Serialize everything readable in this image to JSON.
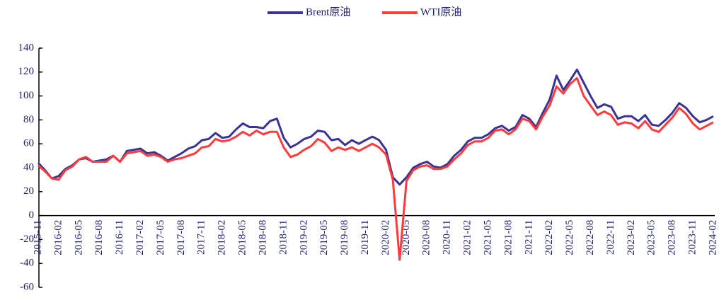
{
  "chart_data": {
    "type": "line",
    "categories": [
      "2015-11",
      null,
      null,
      "2016-02",
      null,
      null,
      "2016-05",
      null,
      null,
      "2016-08",
      null,
      null,
      "2016-11",
      null,
      null,
      "2017-02",
      null,
      null,
      "2017-05",
      null,
      null,
      "2017-08",
      null,
      null,
      "2017-11",
      null,
      null,
      "2018-02",
      null,
      null,
      "2018-05",
      null,
      null,
      "2018-08",
      null,
      null,
      "2018-11",
      null,
      null,
      "2019-02",
      null,
      null,
      "2019-05",
      null,
      null,
      "2019-08",
      null,
      null,
      "2019-11",
      null,
      null,
      "2020-02",
      null,
      null,
      "2020-05",
      null,
      null,
      "2020-08",
      null,
      null,
      "2020-11",
      null,
      null,
      "2021-02",
      null,
      null,
      "2021-05",
      null,
      null,
      "2021-08",
      null,
      null,
      "2021-11",
      null,
      null,
      "2022-02",
      null,
      null,
      "2022-05",
      null,
      null,
      "2022-08",
      null,
      null,
      "2022-11",
      null,
      null,
      "2023-02",
      null,
      null,
      "2023-05",
      null,
      null,
      "2023-08",
      null,
      null,
      "2023-11",
      null,
      null,
      "2024-02"
    ],
    "series": [
      {
        "name": "Brent原油",
        "color": "#3a3393",
        "values": [
          44,
          38,
          31,
          33,
          39,
          42,
          47,
          48,
          45,
          46,
          47,
          50,
          45,
          54,
          55,
          56,
          52,
          53,
          50,
          46,
          49,
          52,
          56,
          58,
          63,
          64,
          69,
          65,
          66,
          72,
          77,
          74,
          74,
          73,
          79,
          81,
          65,
          57,
          60,
          64,
          66,
          71,
          70,
          63,
          64,
          59,
          63,
          60,
          63,
          66,
          63,
          55,
          32,
          26,
          32,
          40,
          43,
          45,
          41,
          40,
          43,
          50,
          55,
          62,
          65,
          65,
          68,
          73,
          75,
          71,
          74,
          84,
          81,
          74,
          86,
          97,
          117,
          105,
          113,
          122,
          111,
          100,
          90,
          93,
          91,
          81,
          83,
          83,
          79,
          84,
          76,
          75,
          80,
          86,
          94,
          90,
          83,
          78,
          80,
          83
        ]
      },
      {
        "name": "WTI原油",
        "color": "#ff3b3b",
        "values": [
          42,
          37,
          31,
          30,
          38,
          41,
          47,
          49,
          45,
          45,
          45,
          50,
          45,
          52,
          53,
          54,
          50,
          51,
          49,
          45,
          47,
          48,
          50,
          52,
          57,
          58,
          64,
          62,
          63,
          66,
          70,
          67,
          71,
          68,
          70,
          70,
          57,
          49,
          51,
          55,
          58,
          64,
          61,
          54,
          57,
          55,
          57,
          54,
          57,
          60,
          57,
          51,
          30,
          -37,
          29,
          38,
          41,
          42,
          39,
          39,
          41,
          47,
          52,
          59,
          62,
          62,
          65,
          71,
          72,
          68,
          72,
          81,
          79,
          72,
          83,
          92,
          108,
          102,
          110,
          115,
          100,
          92,
          84,
          87,
          84,
          76,
          78,
          77,
          73,
          79,
          72,
          70,
          76,
          82,
          90,
          85,
          77,
          72,
          75,
          78
        ]
      }
    ],
    "ylim": [
      -60,
      140
    ],
    "yticks": [
      -60,
      -40,
      -20,
      0,
      20,
      40,
      60,
      80,
      100,
      120,
      140
    ],
    "legend": "top"
  }
}
